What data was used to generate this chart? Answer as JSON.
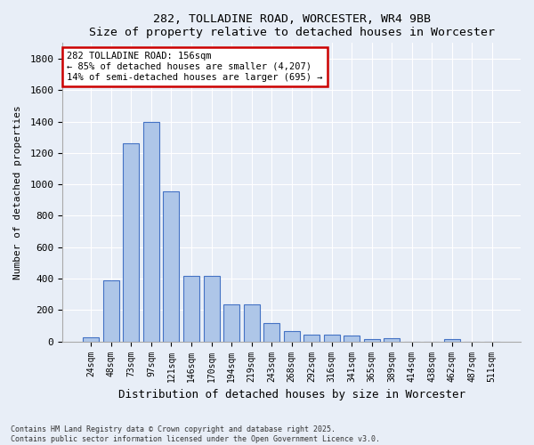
{
  "title1": "282, TOLLADINE ROAD, WORCESTER, WR4 9BB",
  "title2": "Size of property relative to detached houses in Worcester",
  "xlabel": "Distribution of detached houses by size in Worcester",
  "ylabel": "Number of detached properties",
  "bar_labels": [
    "24sqm",
    "48sqm",
    "73sqm",
    "97sqm",
    "121sqm",
    "146sqm",
    "170sqm",
    "194sqm",
    "219sqm",
    "243sqm",
    "268sqm",
    "292sqm",
    "316sqm",
    "341sqm",
    "365sqm",
    "389sqm",
    "414sqm",
    "438sqm",
    "462sqm",
    "487sqm",
    "511sqm"
  ],
  "bar_values": [
    25,
    390,
    1260,
    1400,
    955,
    415,
    415,
    235,
    235,
    115,
    65,
    45,
    45,
    40,
    18,
    20,
    0,
    0,
    18,
    0,
    0
  ],
  "bar_color": "#aec6e8",
  "bar_edge_color": "#4472c4",
  "annotation_text": "282 TOLLADINE ROAD: 156sqm\n← 85% of detached houses are smaller (4,207)\n14% of semi-detached houses are larger (695) →",
  "annotation_box_color": "#ffffff",
  "annotation_box_edge": "#cc0000",
  "ylim": [
    0,
    1900
  ],
  "yticks": [
    0,
    200,
    400,
    600,
    800,
    1000,
    1200,
    1400,
    1600,
    1800
  ],
  "bg_color": "#e8eef7",
  "grid_color": "#ffffff",
  "footnote": "Contains HM Land Registry data © Crown copyright and database right 2025.\nContains public sector information licensed under the Open Government Licence v3.0."
}
